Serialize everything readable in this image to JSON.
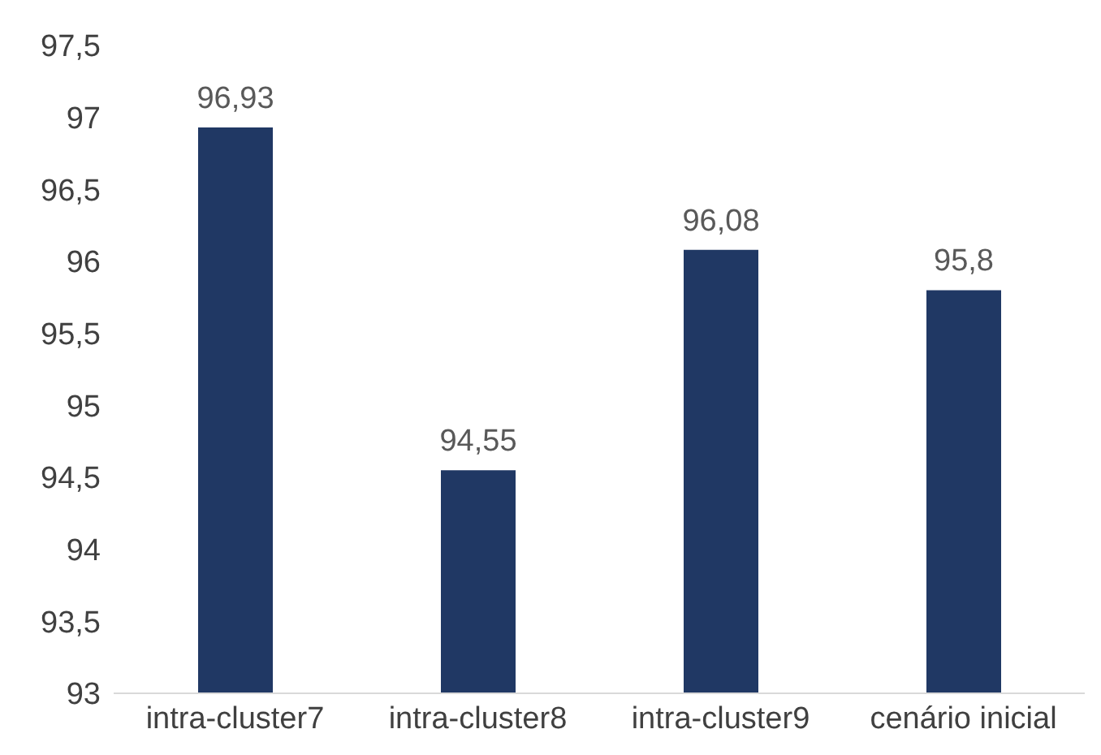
{
  "chart_data": {
    "type": "bar",
    "categories": [
      "intra-cluster7",
      "intra-cluster8",
      "intra-cluster9",
      "cenário inicial"
    ],
    "values": [
      96.93,
      94.55,
      96.08,
      95.8
    ],
    "value_labels": [
      "96,93",
      "94,55",
      "96,08",
      "95,8"
    ],
    "color": "#203864",
    "ylim": [
      93,
      97.5
    ],
    "yticks": [
      93,
      {
        "value": 93.5,
        "label": "93,5"
      },
      94,
      {
        "value": 94.5,
        "label": "94,5"
      },
      95,
      {
        "value": 95.5,
        "label": "95,5"
      },
      96,
      {
        "value": 96.5,
        "label": "96,5"
      },
      97,
      {
        "value": 97.5,
        "label": "97,5"
      }
    ],
    "grid": false,
    "legend": false
  }
}
